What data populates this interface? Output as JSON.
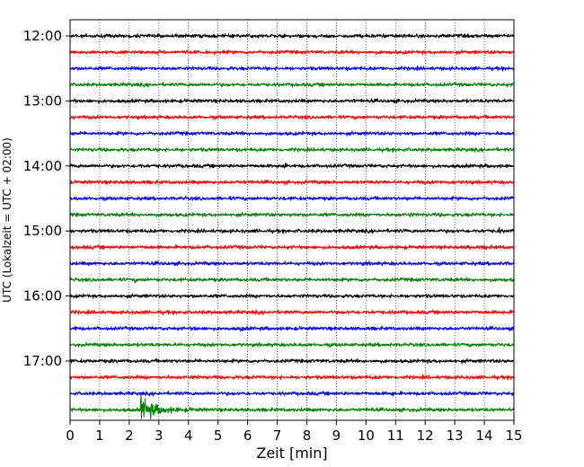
{
  "chart_data": {
    "type": "line",
    "subtype": "helicorder",
    "xlabel": "Zeit  [min]",
    "ylabel": "UTC (Lokalzeit = UTC + 02:00)",
    "xlim": [
      0,
      15
    ],
    "x_ticks": [
      "0",
      "1",
      "2",
      "3",
      "4",
      "5",
      "6",
      "7",
      "8",
      "9",
      "10",
      "11",
      "12",
      "13",
      "14",
      "15"
    ],
    "y_tick_labels": [
      "12:00",
      "13:00",
      "14:00",
      "15:00",
      "16:00",
      "17:00"
    ],
    "trace_interval_minutes": 15,
    "grid": "vertical dotted at each minute",
    "trace_colors": [
      "#000000",
      "#ff0000",
      "#0000ff",
      "#008000"
    ],
    "traces": [
      {
        "start": "12:00",
        "color": "#000000",
        "events": [
          {
            "t": 3.4,
            "amp": 1.2
          },
          {
            "t": 11.3,
            "amp": 2.2
          },
          {
            "t": 12.6,
            "amp": 1.3
          }
        ]
      },
      {
        "start": "12:15",
        "color": "#ff0000",
        "events": [
          {
            "t": 1.9,
            "amp": 1.6
          },
          {
            "t": 12.6,
            "amp": 1.6
          }
        ]
      },
      {
        "start": "12:30",
        "color": "#0000ff",
        "events": []
      },
      {
        "start": "12:45",
        "color": "#008000",
        "events": [
          {
            "t": 4.2,
            "amp": 1.2
          }
        ]
      },
      {
        "start": "13:00",
        "color": "#000000",
        "events": [
          {
            "t": 9.6,
            "amp": 1.2
          },
          {
            "t": 14.5,
            "amp": 1.5
          }
        ]
      },
      {
        "start": "13:15",
        "color": "#ff0000",
        "events": []
      },
      {
        "start": "13:30",
        "color": "#0000ff",
        "events": [
          {
            "t": 11.0,
            "amp": 1.1
          }
        ]
      },
      {
        "start": "13:45",
        "color": "#008000",
        "events": [
          {
            "t": 7.1,
            "amp": 1.5
          }
        ]
      },
      {
        "start": "14:00",
        "color": "#000000",
        "events": [
          {
            "t": 2.4,
            "amp": 1.5
          },
          {
            "t": 7.2,
            "amp": 3.0
          },
          {
            "t": 14.4,
            "amp": 1.3
          }
        ]
      },
      {
        "start": "14:15",
        "color": "#ff0000",
        "events": [
          {
            "t": 12.9,
            "amp": 1.8
          }
        ]
      },
      {
        "start": "14:30",
        "color": "#0000ff",
        "events": [
          {
            "t": 5.4,
            "amp": 1.2
          }
        ]
      },
      {
        "start": "14:45",
        "color": "#008000",
        "events": [
          {
            "t": 3.2,
            "amp": 1.3
          },
          {
            "t": 7.5,
            "amp": 1.5
          },
          {
            "t": 11.5,
            "amp": 1.8
          },
          {
            "t": 12.5,
            "amp": 1.4
          }
        ]
      },
      {
        "start": "15:00",
        "color": "#000000",
        "events": [
          {
            "t": 8.3,
            "amp": 1.2
          },
          {
            "t": 14.5,
            "amp": 2.2
          }
        ]
      },
      {
        "start": "15:15",
        "color": "#ff0000",
        "events": [
          {
            "t": 5.7,
            "amp": 1.2
          },
          {
            "t": 13.5,
            "amp": 2.0
          },
          {
            "t": 14.1,
            "amp": 2.2
          }
        ]
      },
      {
        "start": "15:30",
        "color": "#0000ff",
        "events": [
          {
            "t": 10.0,
            "amp": 1.4
          },
          {
            "t": 14.8,
            "amp": 1.3
          }
        ]
      },
      {
        "start": "15:45",
        "color": "#008000",
        "events": [
          {
            "t": 2.2,
            "amp": 1.6
          },
          {
            "t": 7.1,
            "amp": 1.2
          }
        ]
      },
      {
        "start": "16:00",
        "color": "#000000",
        "events": [
          {
            "t": 14.5,
            "amp": 1.2
          }
        ]
      },
      {
        "start": "16:15",
        "color": "#ff0000",
        "events": []
      },
      {
        "start": "16:30",
        "color": "#0000ff",
        "events": [
          {
            "t": 0.2,
            "amp": 1.8
          },
          {
            "t": 4.2,
            "amp": 2.0
          },
          {
            "t": 5.8,
            "amp": 2.2
          }
        ]
      },
      {
        "start": "16:45",
        "color": "#008000",
        "events": [
          {
            "t": 12.4,
            "amp": 1.2
          }
        ]
      },
      {
        "start": "17:00",
        "color": "#000000",
        "events": [
          {
            "t": 8.5,
            "amp": 1.1
          }
        ]
      },
      {
        "start": "17:15",
        "color": "#ff0000",
        "events": []
      },
      {
        "start": "17:30",
        "color": "#0000ff",
        "events": [
          {
            "t": 9.8,
            "amp": 1.4
          },
          {
            "t": 10.9,
            "amp": 2.0
          }
        ]
      },
      {
        "start": "17:45",
        "color": "#008000",
        "events": [
          {
            "t": 2.4,
            "amp": 8.0
          },
          {
            "t": 10.2,
            "amp": 1.6
          }
        ]
      }
    ]
  }
}
